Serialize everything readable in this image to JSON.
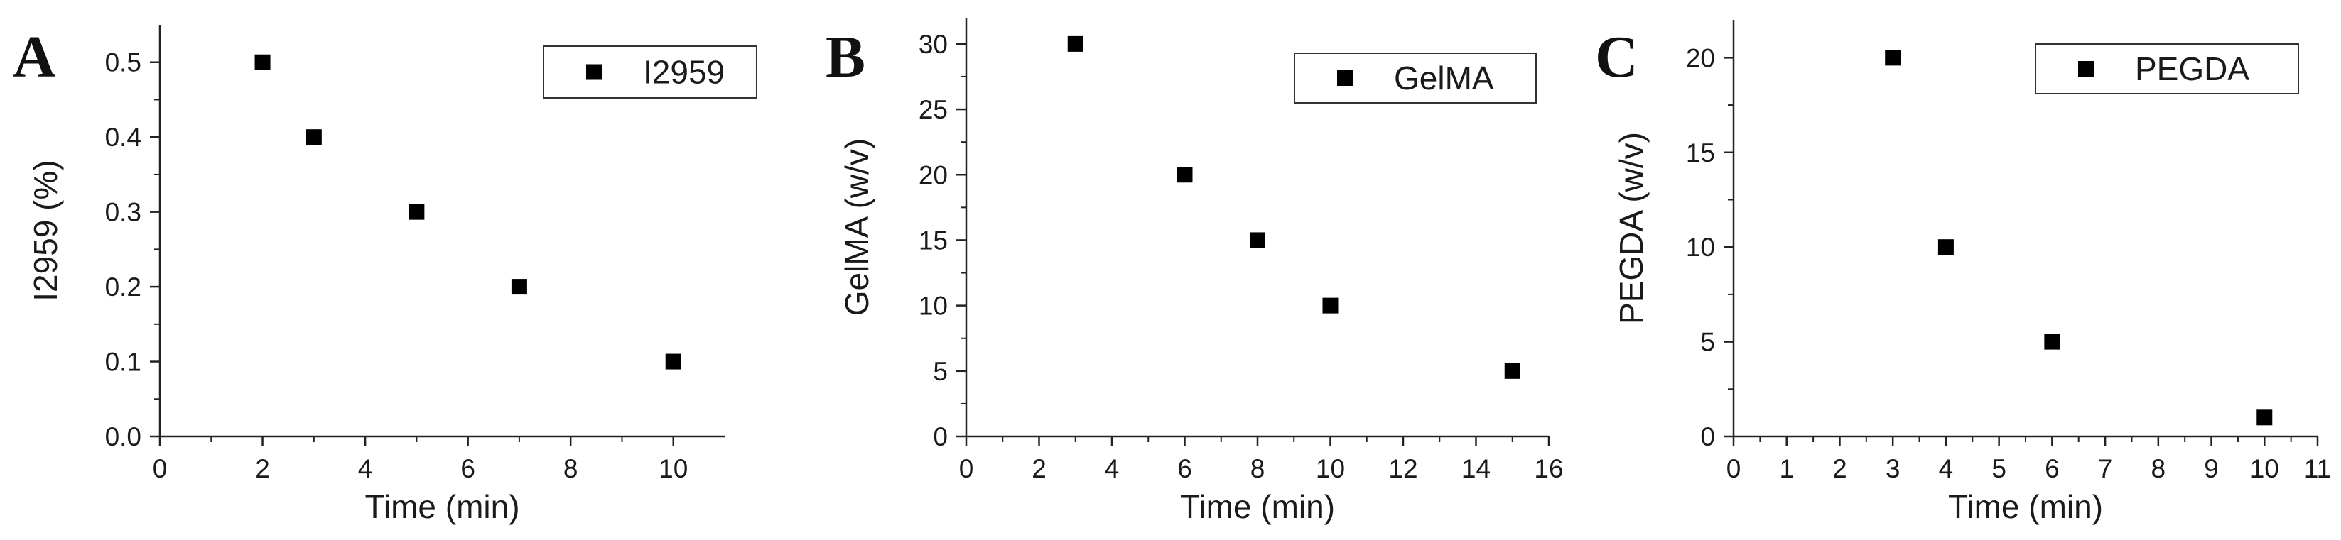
{
  "chart_data": [
    {
      "panel": "A",
      "type": "scatter",
      "xlabel": "Time (min)",
      "ylabel": "I2959 (%)",
      "xlim": [
        0,
        11
      ],
      "ylim": [
        0,
        0.55
      ],
      "xticks": [
        0,
        2,
        4,
        6,
        8,
        10
      ],
      "xtick_labels": [
        "0",
        "2",
        "4",
        "6",
        "8",
        "10"
      ],
      "yticks": [
        0,
        0.1,
        0.2,
        0.3,
        0.4,
        0.5
      ],
      "ytick_labels": [
        "0.0",
        "0.1",
        "0.2",
        "0.3",
        "0.4",
        "0.5"
      ],
      "legend": "top-right",
      "grid": false,
      "series": [
        {
          "name": "I2959",
          "marker": "square",
          "color": "#000000",
          "x": [
            2,
            3,
            5,
            7,
            10
          ],
          "y": [
            0.5,
            0.4,
            0.3,
            0.2,
            0.1
          ]
        }
      ]
    },
    {
      "panel": "B",
      "type": "scatter",
      "xlabel": "Time (min)",
      "ylabel": "GelMA (w/v)",
      "xlim": [
        0,
        16
      ],
      "ylim": [
        0,
        32
      ],
      "xticks": [
        0,
        2,
        4,
        6,
        8,
        10,
        12,
        14,
        16
      ],
      "xtick_labels": [
        "0",
        "2",
        "4",
        "6",
        "8",
        "10",
        "12",
        "14",
        "16"
      ],
      "yticks": [
        0,
        5,
        10,
        15,
        20,
        25,
        30
      ],
      "ytick_labels": [
        "0",
        "5",
        "10",
        "15",
        "20",
        "25",
        "30"
      ],
      "legend": "top-right",
      "grid": false,
      "series": [
        {
          "name": "GelMA",
          "marker": "square",
          "color": "#000000",
          "x": [
            3,
            6,
            8,
            10,
            15
          ],
          "y": [
            30,
            20,
            15,
            10,
            5
          ]
        }
      ]
    },
    {
      "panel": "C",
      "type": "scatter",
      "xlabel": "Time (min)",
      "ylabel": "PEGDA (w/v)",
      "xlim": [
        0,
        11
      ],
      "ylim": [
        0,
        22
      ],
      "xticks": [
        0,
        1,
        2,
        3,
        4,
        5,
        6,
        7,
        8,
        9,
        10,
        11
      ],
      "xtick_labels": [
        "0",
        "1",
        "2",
        "3",
        "4",
        "5",
        "6",
        "7",
        "8",
        "9",
        "10",
        "11"
      ],
      "yticks": [
        0,
        5,
        10,
        15,
        20
      ],
      "ytick_labels": [
        "0",
        "5",
        "10",
        "15",
        "20"
      ],
      "legend": "top-right",
      "grid": false,
      "series": [
        {
          "name": "PEGDA",
          "marker": "square",
          "color": "#000000",
          "x": [
            3,
            4,
            6,
            10
          ],
          "y": [
            20,
            10,
            5,
            1
          ]
        }
      ]
    }
  ]
}
